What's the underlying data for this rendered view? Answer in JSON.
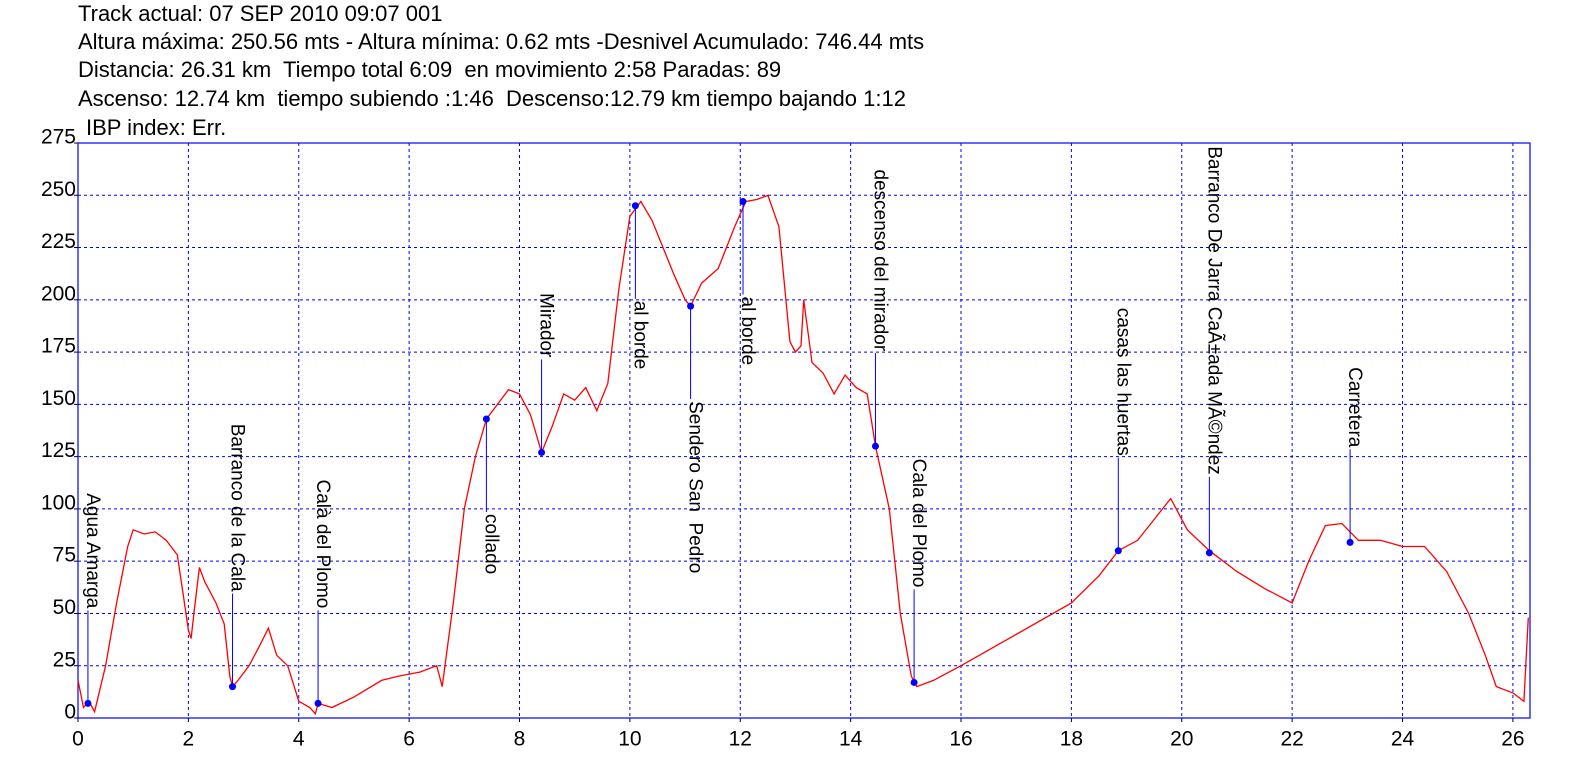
{
  "chart_data": {
    "type": "line",
    "title": "Track actual: 07 SEP 2010 09:07 001",
    "subtitles": [
      "Altura máxima: 250.56 mts - Altura mínima: 0.62 mts -Desnivel Acumulado: 746.44 mts",
      "Distancia: 26.31 km  Tiempo total 6:09  en movimiento 2:58 Paradas: 89",
      "Ascenso: 12.74 km  tiempo subiendo :1:46  Descenso:12.79 km tiempo bajando 1:12",
      "IBP index: Err."
    ],
    "xlim": [
      0,
      26.31
    ],
    "ylim": [
      0,
      275
    ],
    "xticks": [
      0,
      2,
      4,
      6,
      8,
      10,
      12,
      14,
      16,
      18,
      20,
      22,
      24,
      26
    ],
    "yticks": [
      0,
      25,
      50,
      75,
      100,
      125,
      150,
      175,
      200,
      225,
      250,
      275
    ],
    "grid": true,
    "series": [
      {
        "color": "#ff0000",
        "x": [
          0,
          0.1,
          0.2,
          0.3,
          0.5,
          0.7,
          0.9,
          1.0,
          1.2,
          1.4,
          1.6,
          1.8,
          1.9,
          2.0,
          2.05,
          2.1,
          2.2,
          2.3,
          2.5,
          2.65,
          2.75,
          2.8,
          2.9,
          3.1,
          3.3,
          3.45,
          3.6,
          3.8,
          4.0,
          4.2,
          4.3,
          4.35,
          4.6,
          5.0,
          5.5,
          5.8,
          6.2,
          6.5,
          6.6,
          6.8,
          7.0,
          7.2,
          7.4,
          7.6,
          7.8,
          8.0,
          8.1,
          8.2,
          8.4,
          8.6,
          8.8,
          9.0,
          9.2,
          9.4,
          9.6,
          9.8,
          10.0,
          10.2,
          10.4,
          10.6,
          10.8,
          11.0,
          11.1,
          11.3,
          11.6,
          11.9,
          12.1,
          12.3,
          12.5,
          12.7,
          12.9,
          13.0,
          13.1,
          13.15,
          13.3,
          13.5,
          13.7,
          13.9,
          14.1,
          14.3,
          14.45,
          14.7,
          14.9,
          15.1,
          15.2,
          15.5,
          16.0,
          17.0,
          18.0,
          18.5,
          18.85,
          19.2,
          19.5,
          19.8,
          20.1,
          20.5,
          21.0,
          21.5,
          22.0,
          22.3,
          22.6,
          22.9,
          23.2,
          23.6,
          24.0,
          24.4,
          24.8,
          25.2,
          25.5,
          25.7,
          26.0,
          26.2,
          26.28
        ],
        "values": [
          18,
          5,
          8,
          3,
          25,
          55,
          82,
          90,
          88,
          89,
          85,
          78,
          60,
          42,
          38,
          50,
          72,
          65,
          55,
          45,
          20,
          15,
          18,
          25,
          35,
          43,
          30,
          25,
          8,
          5,
          2,
          7,
          5,
          10,
          18,
          20,
          22,
          25,
          15,
          55,
          100,
          125,
          143,
          150,
          157,
          155,
          150,
          145,
          127,
          140,
          155,
          152,
          158,
          147,
          160,
          205,
          240,
          247,
          238,
          225,
          212,
          200,
          197,
          208,
          215,
          235,
          247,
          248,
          250,
          235,
          180,
          175,
          178,
          200,
          170,
          165,
          155,
          164,
          158,
          155,
          130,
          100,
          50,
          20,
          15,
          18,
          25,
          40,
          55,
          68,
          80,
          85,
          95,
          105,
          90,
          80,
          70,
          62,
          55,
          75,
          92,
          93,
          85,
          85,
          82,
          82,
          70,
          50,
          30,
          15,
          12,
          8,
          48
        ]
      }
    ],
    "waypoints": {
      "color": "#0000ff",
      "x": [
        0.18,
        2.8,
        4.35,
        7.4,
        8.4,
        10.1,
        11.1,
        12.05,
        14.45,
        15.15,
        18.85,
        20.5,
        23.05
      ],
      "values": [
        7,
        15,
        7,
        143,
        127,
        245,
        197,
        247,
        130,
        17,
        80,
        79,
        84
      ],
      "labels": [
        "Agua Amarga",
        "Barranco de la Cala",
        "Calà del Plomo",
        "collado",
        "Mirador",
        "al borde",
        "Sendero San  Pedro",
        "al borde",
        "descenso del mirador",
        "Cala del Plomo",
        "casas las huertas",
        "Barranco De Jarra CaÃ±ada MÃ©ndez",
        "Carretera"
      ]
    }
  }
}
